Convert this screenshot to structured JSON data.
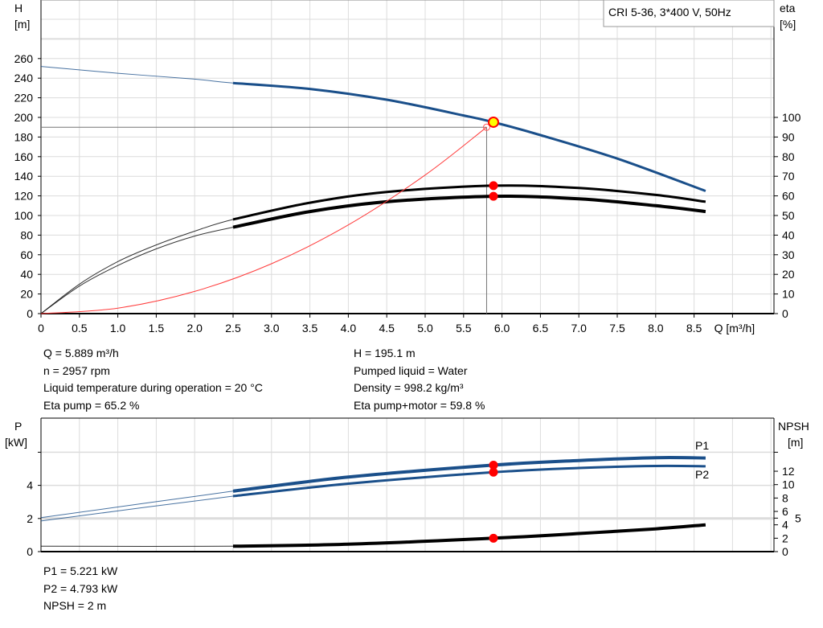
{
  "chart_data": [
    {
      "type": "line",
      "title_box": "CRI 5-36, 3*400 V, 50Hz",
      "xlabel": "Q [m³/h]",
      "ylabel_left": [
        "H",
        "[m]"
      ],
      "ylabel_right": [
        "eta",
        "[%]"
      ],
      "xlim": [
        0,
        9.5
      ],
      "ylim_left": [
        0,
        300
      ],
      "ylim_right": [
        0,
        150
      ],
      "grid": true,
      "x_ticks": [
        0,
        0.5,
        1.0,
        1.5,
        2.0,
        2.5,
        3.0,
        3.5,
        4.0,
        4.5,
        5.0,
        5.5,
        6.0,
        6.5,
        7.0,
        7.5,
        8.0,
        8.5
      ],
      "y_left_ticks": [
        0,
        20,
        40,
        60,
        80,
        100,
        120,
        140,
        160,
        180,
        200,
        220,
        240,
        260
      ],
      "y_right_ticks": [
        0,
        10,
        20,
        30,
        40,
        50,
        60,
        70,
        80,
        90,
        100
      ],
      "series": [
        {
          "key": "H",
          "axis": "left",
          "color": "#1a4f8a",
          "thick_from": 2.5,
          "x": [
            0,
            1,
            2,
            2.5,
            3.5,
            4.5,
            5.5,
            5.889,
            6.5,
            7.5,
            8.65
          ],
          "y": [
            252,
            245,
            239,
            235,
            229,
            218,
            202,
            195.1,
            182,
            158,
            125
          ]
        },
        {
          "key": "eta_pump",
          "axis": "right",
          "color": "#000000",
          "thick_from": 2.5,
          "x": [
            0,
            0.5,
            1.0,
            1.5,
            2.0,
            2.5,
            3.5,
            4.5,
            5.889,
            7,
            8,
            8.65
          ],
          "y": [
            0,
            15,
            26.5,
            35,
            42,
            48,
            56.5,
            62,
            65.2,
            64,
            60.5,
            57
          ]
        },
        {
          "key": "eta_pump_motor",
          "axis": "right",
          "color": "#000000",
          "thick_from": 2.5,
          "bold": true,
          "x": [
            0,
            0.5,
            1.0,
            1.5,
            2.0,
            2.5,
            3.5,
            4.5,
            5.889,
            7,
            8,
            8.65
          ],
          "y": [
            0,
            14,
            24.5,
            33,
            39.5,
            44,
            52,
            57,
            59.8,
            58.5,
            55,
            52
          ]
        },
        {
          "key": "system",
          "axis": "left",
          "color": "#ff3b3b",
          "x": [
            0,
            1,
            2,
            3,
            4,
            5,
            5.8
          ],
          "y": [
            0,
            5.6,
            22.6,
            50.8,
            90.4,
            141.2,
            190
          ]
        }
      ],
      "duty_point": {
        "Q": 5.8,
        "H": 190
      },
      "operating_point": {
        "Q": 5.889,
        "H": 195.1,
        "eta_pump": 65.2,
        "eta_total": 59.8
      }
    },
    {
      "type": "line",
      "ylabel_left": [
        "P",
        "[kW]"
      ],
      "ylabel_right": [
        "NPSH",
        "[m]"
      ],
      "xlim": [
        0,
        9.5
      ],
      "ylim_left": [
        0,
        8
      ],
      "grid": true,
      "y_left_ticks": [
        0,
        2,
        4
      ],
      "y_right_ticks": [
        0,
        2,
        4,
        5,
        6,
        8,
        10,
        12
      ],
      "series": [
        {
          "key": "P1",
          "name": "P1",
          "axis": "left",
          "color": "#1a4f8a",
          "thick_from": 2.5,
          "bold": true,
          "x": [
            0,
            2.5,
            4,
            5.889,
            7,
            8,
            8.65
          ],
          "y": [
            2.05,
            3.65,
            4.5,
            5.221,
            5.5,
            5.67,
            5.65
          ]
        },
        {
          "key": "P2",
          "name": "P2",
          "axis": "left",
          "color": "#1a4f8a",
          "thick_from": 2.5,
          "x": [
            0,
            2.5,
            4,
            5.889,
            7,
            8,
            8.65
          ],
          "y": [
            1.85,
            3.35,
            4.1,
            4.793,
            5.05,
            5.17,
            5.15
          ]
        },
        {
          "key": "NPSH",
          "axis": "right",
          "color": "#000000",
          "thick_from": 2.5,
          "bold": true,
          "x": [
            0,
            2.5,
            4,
            5.889,
            7,
            8,
            8.65
          ],
          "y": [
            0.8,
            0.8,
            1.1,
            2.0,
            2.7,
            3.4,
            4.0
          ]
        }
      ],
      "operating_point": {
        "Q": 5.889,
        "P1": 5.221,
        "P2": 4.793,
        "NPSH": 2
      }
    }
  ],
  "info": {
    "left": [
      "Q = 5.889 m³/h",
      "n = 2957 rpm",
      "Liquid temperature during operation = 20 °C",
      "Eta pump = 65.2 %"
    ],
    "right": [
      "H = 195.1 m",
      "Pumped liquid = Water",
      "Density = 998.2 kg/m³",
      "Eta pump+motor = 59.8 %"
    ],
    "bottom": [
      "P1 = 5.221 kW",
      "P2 = 4.793 kW",
      "NPSH = 2 m"
    ]
  }
}
